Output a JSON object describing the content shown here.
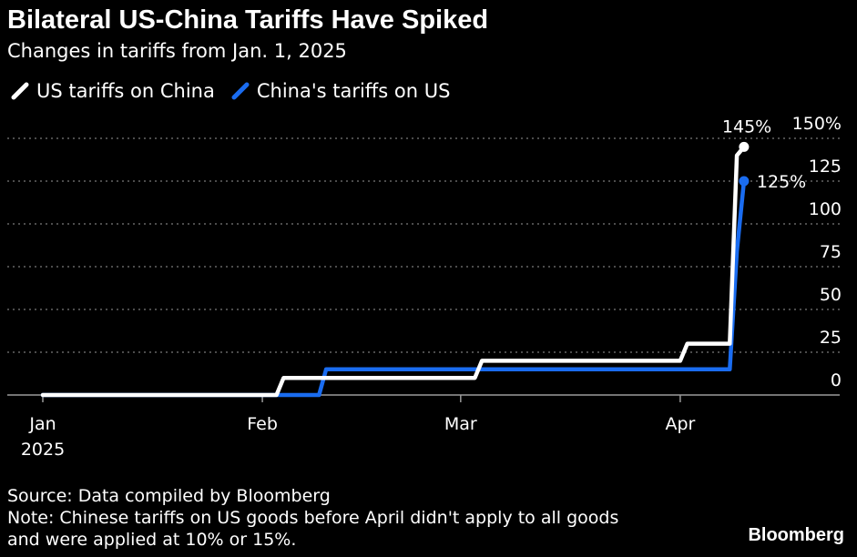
{
  "header": {
    "title": "Bilateral US-China Tariffs Have Spiked",
    "subtitle": "Changes in tariffs from Jan. 1, 2025"
  },
  "footer": {
    "source": "Source: Data compiled by Bloomberg",
    "note_line1": "Note: Chinese tariffs on US goods before April didn't apply to all goods",
    "note_line2": "and were applied at 10% or 15%.",
    "brand": "Bloomberg"
  },
  "chart_data": {
    "type": "line",
    "title": "Bilateral US-China Tariffs Have Spiked",
    "subtitle": "Changes in tariffs from Jan. 1, 2025",
    "xlabel": "",
    "ylabel": "",
    "x_ticks": [
      {
        "date": "2025-01-01",
        "label": "Jan",
        "sublabel": "2025"
      },
      {
        "date": "2025-02-01",
        "label": "Feb",
        "sublabel": ""
      },
      {
        "date": "2025-03-01",
        "label": "Mar",
        "sublabel": ""
      },
      {
        "date": "2025-04-01",
        "label": "Apr",
        "sublabel": ""
      }
    ],
    "y_ticks": [
      {
        "value": 0,
        "label": "0"
      },
      {
        "value": 25,
        "label": "25"
      },
      {
        "value": 50,
        "label": "50"
      },
      {
        "value": 75,
        "label": "75"
      },
      {
        "value": 100,
        "label": "100"
      },
      {
        "value": 125,
        "label": "125"
      },
      {
        "value": 150,
        "label": "150%"
      }
    ],
    "xlim": [
      "2025-01-01",
      "2025-04-14"
    ],
    "ylim": [
      0,
      150
    ],
    "grid": true,
    "legend_position": "top-left",
    "series": [
      {
        "name": "US tariffs on China",
        "color": "#ffffff",
        "end_label": "145%",
        "points": [
          {
            "x": "2025-01-01",
            "y": 0
          },
          {
            "x": "2025-02-03",
            "y": 0
          },
          {
            "x": "2025-02-04",
            "y": 10
          },
          {
            "x": "2025-03-03",
            "y": 10
          },
          {
            "x": "2025-03-04",
            "y": 20
          },
          {
            "x": "2025-04-01",
            "y": 20
          },
          {
            "x": "2025-04-02",
            "y": 30
          },
          {
            "x": "2025-04-08",
            "y": 30
          },
          {
            "x": "2025-04-09",
            "y": 140
          },
          {
            "x": "2025-04-10",
            "y": 145
          }
        ]
      },
      {
        "name": "China's tariffs on US",
        "color": "#1a6cf0",
        "end_label": "125%",
        "points": [
          {
            "x": "2025-01-01",
            "y": 0
          },
          {
            "x": "2025-02-09",
            "y": 0
          },
          {
            "x": "2025-02-10",
            "y": 15
          },
          {
            "x": "2025-04-08",
            "y": 15
          },
          {
            "x": "2025-04-09",
            "y": 84
          },
          {
            "x": "2025-04-10",
            "y": 125
          }
        ]
      }
    ]
  }
}
